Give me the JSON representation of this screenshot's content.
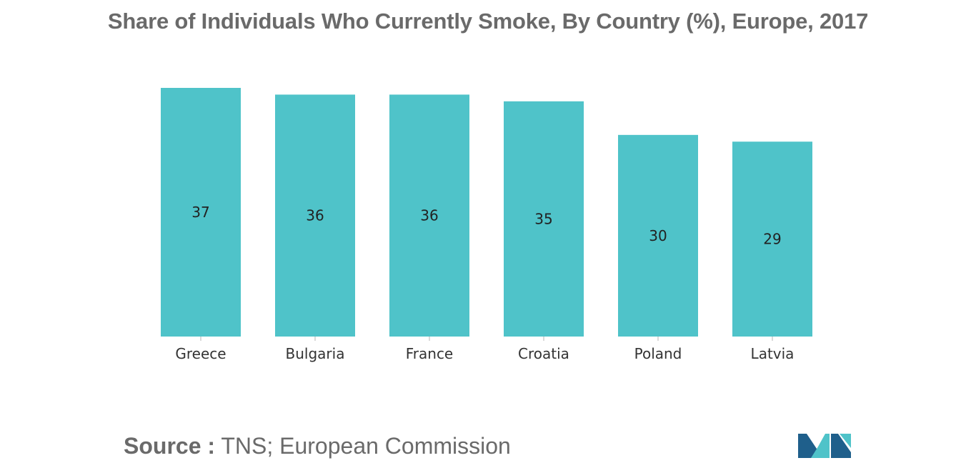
{
  "chart_data": {
    "type": "bar",
    "title": "Share of Individuals Who Currently Smoke, By Country (%), Europe, 2017",
    "categories": [
      "Greece",
      "Bulgaria",
      "France",
      "Croatia",
      "Poland",
      "Latvia"
    ],
    "values": [
      37,
      36,
      36,
      35,
      30,
      29
    ],
    "xlabel": "",
    "ylabel": "",
    "ylim": [
      0,
      37
    ],
    "grid": false,
    "legend": "none",
    "bar_color": "#4fc3c9"
  },
  "source": {
    "label": "Source :",
    "text": "TNS; European Commission"
  },
  "logo": {
    "icon": "mordor-intelligence-logo",
    "colors": [
      "#1f5f8b",
      "#4fc3c9"
    ]
  }
}
